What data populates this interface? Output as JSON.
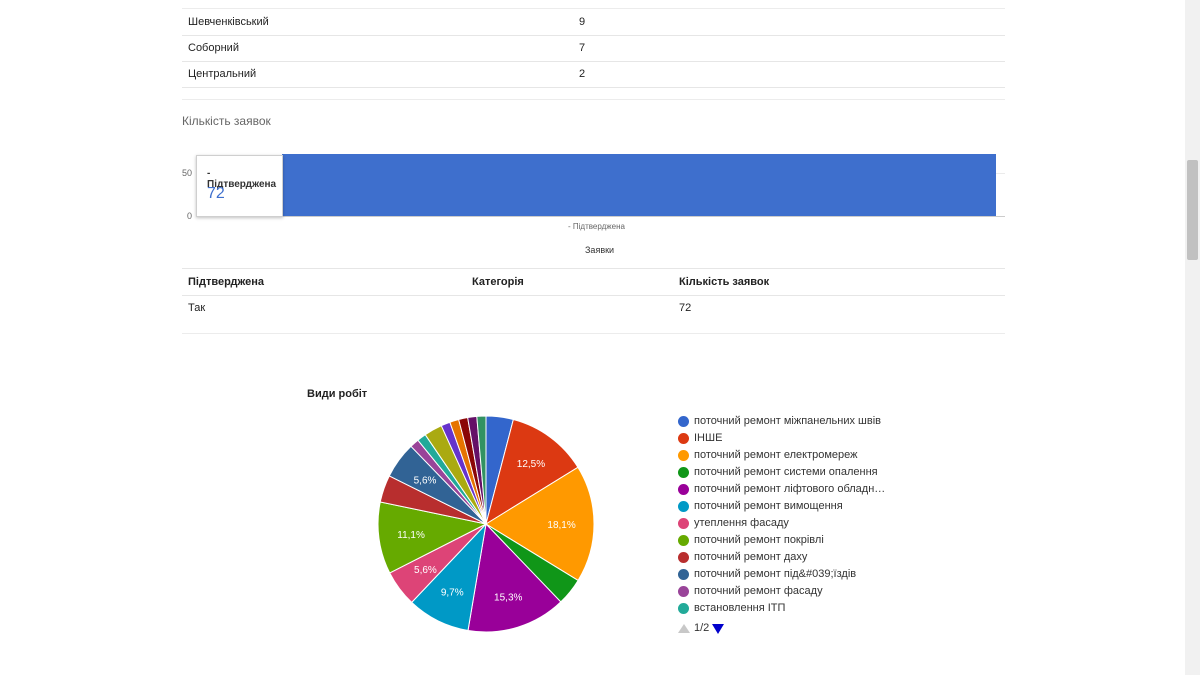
{
  "districts_table": {
    "rows": [
      {
        "name": "Шевченківський",
        "value": "9"
      },
      {
        "name": "Соборний",
        "value": "7"
      },
      {
        "name": "Центральний",
        "value": "2"
      }
    ]
  },
  "bar_chart": {
    "title": "Кількість заявок",
    "y_ticks": [
      "50",
      "0"
    ],
    "category_label": "- Підтверджена",
    "x_title": "Заявки",
    "bar_color": "#3e6fcd",
    "tooltip": {
      "label": "- Підтверджена",
      "value": "72"
    }
  },
  "confirm_table": {
    "headers": [
      "Підтверджена",
      "Категорія",
      "Кількість заявок"
    ],
    "row": [
      "Так",
      "",
      "72"
    ]
  },
  "pie_chart": {
    "title": "Види робіт",
    "legend": [
      {
        "label": "поточний ремонт міжпанельних швів",
        "color": "#3366cc"
      },
      {
        "label": "ІНШЕ",
        "color": "#dc3912"
      },
      {
        "label": "поточний ремонт електромереж",
        "color": "#ff9900"
      },
      {
        "label": "поточний ремонт системи опалення",
        "color": "#109618"
      },
      {
        "label": "поточний ремонт ліфтового обладн…",
        "color": "#990099"
      },
      {
        "label": "поточний ремонт вимощення",
        "color": "#0099c6"
      },
      {
        "label": "утеплення фасаду",
        "color": "#dd4477"
      },
      {
        "label": "поточний ремонт покрівлі",
        "color": "#66aa00"
      },
      {
        "label": "поточний ремонт даху",
        "color": "#b82e2e"
      },
      {
        "label": "поточний ремонт під&#039;їздів",
        "color": "#316395"
      },
      {
        "label": "поточний ремонт фасаду",
        "color": "#994499"
      },
      {
        "label": "встановлення ІТП",
        "color": "#22aa99"
      }
    ],
    "pager": {
      "text": "1/2"
    }
  },
  "chart_data": [
    {
      "type": "bar",
      "title": "Кількість заявок",
      "categories": [
        "- Підтверджена"
      ],
      "values": [
        72
      ],
      "xlabel": "Заявки",
      "ylabel": "",
      "ylim": [
        0,
        72
      ],
      "grid": true
    },
    {
      "type": "pie",
      "title": "Види робіт",
      "labels": [
        "поточний ремонт міжпанельних швів",
        "ІНШЕ",
        "поточний ремонт електромереж",
        "поточний ремонт системи опалення",
        "поточний ремонт ліфтового обладн…",
        "поточний ремонт вимощення",
        "утеплення фасаду",
        "поточний ремонт покрівлі",
        "поточний ремонт даху",
        "поточний ремонт під&#039;їздів",
        "поточний ремонт фасаду",
        "встановлення ІТП",
        "",
        "",
        "",
        "",
        "",
        ""
      ],
      "values": [
        4.2,
        12.5,
        18.1,
        4.2,
        15.3,
        9.7,
        5.6,
        11.1,
        4.2,
        5.6,
        1.4,
        1.4,
        2.8,
        1.4,
        1.4,
        1.4,
        1.4,
        1.4
      ],
      "slice_labels": [
        "",
        "12,5%",
        "18,1%",
        "",
        "15,3%",
        "9,7%",
        "5,6%",
        "11,1%",
        "",
        "5,6%",
        "",
        "",
        "",
        "",
        "",
        "",
        "",
        ""
      ],
      "colors": [
        "#3366cc",
        "#dc3912",
        "#ff9900",
        "#109618",
        "#990099",
        "#0099c6",
        "#dd4477",
        "#66aa00",
        "#b82e2e",
        "#316395",
        "#994499",
        "#22aa99",
        "#aaaa11",
        "#6633cc",
        "#e67300",
        "#8b0707",
        "#651067",
        "#329262"
      ],
      "legend_position": "right"
    }
  ]
}
